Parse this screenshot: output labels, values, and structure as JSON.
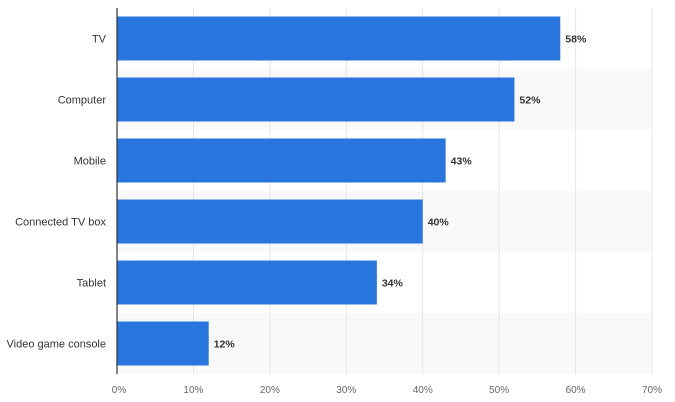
{
  "chart_data": {
    "type": "bar",
    "orientation": "horizontal",
    "title": "",
    "xlabel": "",
    "ylabel": "",
    "categories": [
      "TV",
      "Computer",
      "Mobile",
      "Connected TV box",
      "Tablet",
      "Video game console"
    ],
    "values": [
      58,
      52,
      43,
      40,
      34,
      12
    ],
    "value_labels": [
      "58%",
      "52%",
      "43%",
      "40%",
      "34%",
      "12%"
    ],
    "xlim": [
      0,
      70
    ],
    "ticks": [
      0,
      10,
      20,
      30,
      40,
      50,
      60,
      70
    ],
    "tick_labels": [
      "0%",
      "10%",
      "20%",
      "30%",
      "40%",
      "50%",
      "60%",
      "70%"
    ],
    "grid": true,
    "bar_color": "#2876dd"
  }
}
